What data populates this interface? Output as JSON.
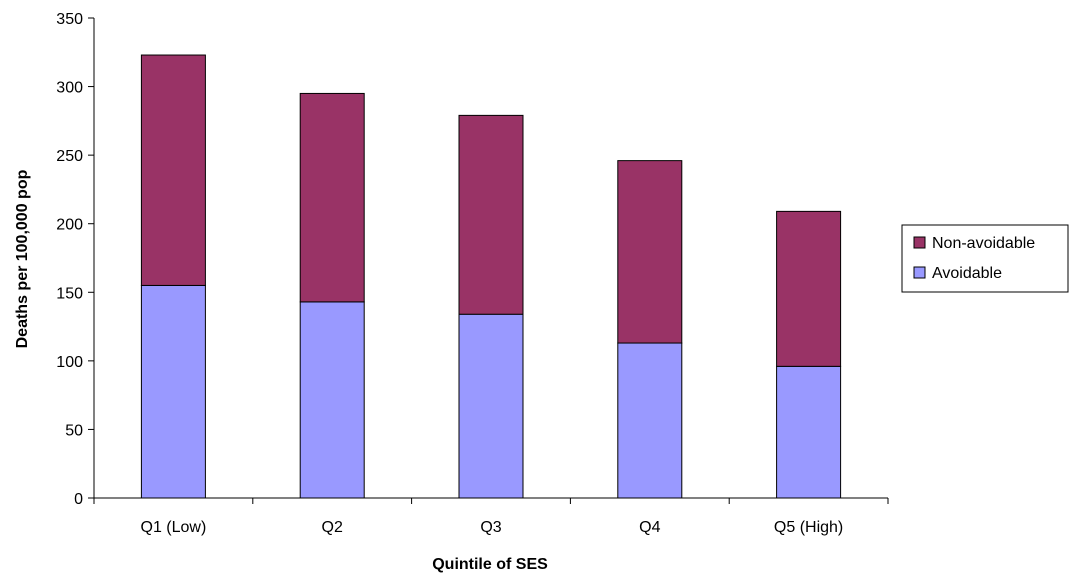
{
  "chart_data": {
    "type": "bar",
    "stacked": true,
    "title": "",
    "xlabel": "Quintile of SES",
    "ylabel": "Deaths per 100,000 pop",
    "categories": [
      "Q1 (Low)",
      "Q2",
      "Q3",
      "Q4",
      "Q5 (High)"
    ],
    "series": [
      {
        "name": "Avoidable",
        "values": [
          155,
          143,
          134,
          113,
          96
        ],
        "color": "#9999ff"
      },
      {
        "name": "Non-avoidable",
        "values": [
          168,
          152,
          145,
          133,
          113
        ],
        "color": "#993366"
      }
    ],
    "ylim": [
      0,
      350
    ],
    "yticks": [
      0,
      50,
      100,
      150,
      200,
      250,
      300,
      350
    ],
    "grid": false,
    "legend": {
      "position": "right",
      "order": [
        "Non-avoidable",
        "Avoidable"
      ]
    }
  }
}
